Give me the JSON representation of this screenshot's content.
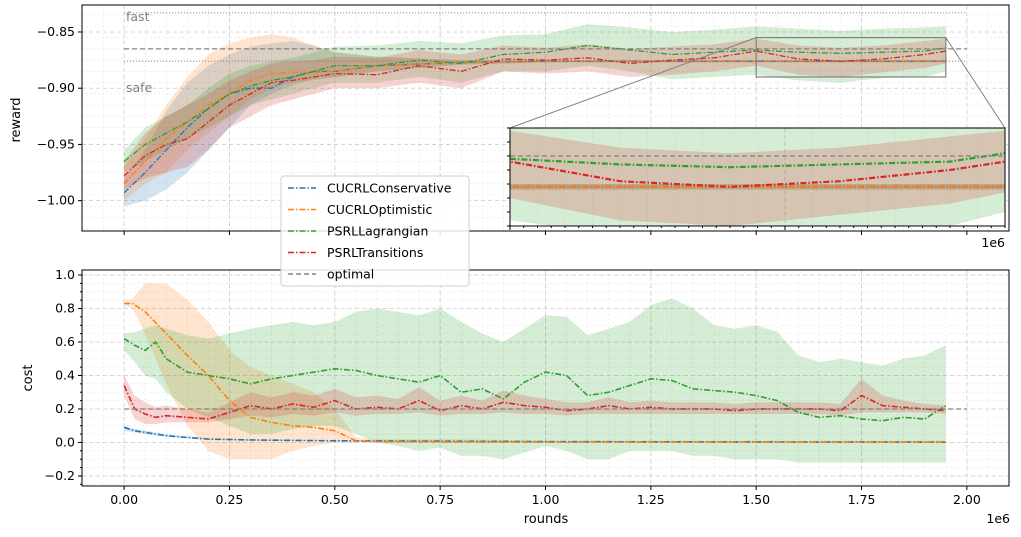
{
  "chart_data": [
    {
      "type": "line",
      "panel": "top",
      "ylabel": "reward",
      "xlabel": "",
      "xlim": [
        -100000,
        2100000
      ],
      "ylim": [
        -1.027,
        -0.826
      ],
      "yticks": [
        -1.0,
        -0.95,
        -0.9,
        -0.85
      ],
      "ytick_labels": [
        "−1.00",
        "−0.95",
        "−0.90",
        "−0.85"
      ],
      "offset_label": "1e6",
      "grid": true,
      "annotations": [
        {
          "text": "fast",
          "y": -0.833
        },
        {
          "text": "safe",
          "y": -0.876
        }
      ],
      "optimal_y": -0.865,
      "inset": {
        "xlim": [
          1500000,
          1950000
        ],
        "ylim": [
          -0.89,
          -0.855
        ],
        "offset_label": "1e6"
      },
      "series": [
        {
          "name": "CUCRLConservative",
          "color": "#1f77b4",
          "x": [
            0,
            50000,
            100000,
            150000,
            200000,
            250000,
            300000,
            350000,
            400000,
            450000,
            500000,
            600000,
            800000,
            1000000,
            1200000,
            1400000,
            1600000,
            1800000,
            1950000
          ],
          "values": [
            -0.993,
            -0.975,
            -0.955,
            -0.935,
            -0.918,
            -0.905,
            -0.9,
            -0.9,
            -0.89,
            -0.885,
            -0.885,
            -0.88,
            -0.877,
            -0.876,
            -0.876,
            -0.876,
            -0.876,
            -0.876,
            -0.876
          ],
          "band_low": [
            -1.005,
            -1.0,
            -0.99,
            -0.975,
            -0.955,
            -0.935,
            -0.915,
            -0.905,
            -0.897,
            -0.892,
            -0.89,
            -0.885,
            -0.879,
            -0.877,
            -0.877,
            -0.877,
            -0.877,
            -0.877,
            -0.877
          ],
          "band_high": [
            -0.98,
            -0.955,
            -0.92,
            -0.895,
            -0.88,
            -0.87,
            -0.863,
            -0.86,
            -0.858,
            -0.862,
            -0.868,
            -0.872,
            -0.875,
            -0.875,
            -0.875,
            -0.875,
            -0.875,
            -0.875,
            -0.875
          ]
        },
        {
          "name": "CUCRLOptimistic",
          "color": "#ff7f0e",
          "x": [
            0,
            50000,
            100000,
            150000,
            200000,
            250000,
            300000,
            350000,
            400000,
            450000,
            500000,
            600000,
            800000,
            1000000,
            1200000,
            1400000,
            1600000,
            1800000,
            1950000
          ],
          "values": [
            -0.985,
            -0.965,
            -0.945,
            -0.93,
            -0.915,
            -0.905,
            -0.893,
            -0.887,
            -0.886,
            -0.886,
            -0.885,
            -0.88,
            -0.877,
            -0.876,
            -0.876,
            -0.876,
            -0.876,
            -0.876,
            -0.876
          ],
          "band_low": [
            -1.0,
            -0.985,
            -0.975,
            -0.955,
            -0.94,
            -0.925,
            -0.91,
            -0.9,
            -0.895,
            -0.893,
            -0.89,
            -0.885,
            -0.879,
            -0.877,
            -0.877,
            -0.877,
            -0.877,
            -0.877,
            -0.877
          ],
          "band_high": [
            -0.97,
            -0.945,
            -0.915,
            -0.89,
            -0.87,
            -0.86,
            -0.855,
            -0.852,
            -0.855,
            -0.862,
            -0.868,
            -0.872,
            -0.875,
            -0.875,
            -0.875,
            -0.875,
            -0.875,
            -0.875,
            -0.875
          ]
        },
        {
          "name": "PSRLLagrangian",
          "color": "#2ca02c",
          "x": [
            0,
            50000,
            100000,
            150000,
            200000,
            250000,
            300000,
            350000,
            400000,
            450000,
            500000,
            600000,
            700000,
            800000,
            900000,
            1000000,
            1100000,
            1200000,
            1300000,
            1400000,
            1500000,
            1600000,
            1700000,
            1800000,
            1900000,
            1950000
          ],
          "values": [
            -0.965,
            -0.95,
            -0.94,
            -0.93,
            -0.918,
            -0.905,
            -0.898,
            -0.893,
            -0.89,
            -0.885,
            -0.88,
            -0.88,
            -0.875,
            -0.878,
            -0.87,
            -0.868,
            -0.862,
            -0.866,
            -0.87,
            -0.868,
            -0.866,
            -0.868,
            -0.869,
            -0.868,
            -0.867,
            -0.864
          ],
          "band_low": [
            -0.975,
            -0.965,
            -0.955,
            -0.945,
            -0.935,
            -0.925,
            -0.915,
            -0.91,
            -0.905,
            -0.9,
            -0.895,
            -0.895,
            -0.89,
            -0.895,
            -0.885,
            -0.885,
            -0.88,
            -0.885,
            -0.892,
            -0.89,
            -0.888,
            -0.893,
            -0.895,
            -0.891,
            -0.89,
            -0.885
          ],
          "band_high": [
            -0.955,
            -0.935,
            -0.925,
            -0.915,
            -0.9,
            -0.887,
            -0.88,
            -0.876,
            -0.873,
            -0.868,
            -0.863,
            -0.862,
            -0.858,
            -0.86,
            -0.853,
            -0.852,
            -0.843,
            -0.846,
            -0.85,
            -0.848,
            -0.845,
            -0.847,
            -0.849,
            -0.847,
            -0.846,
            -0.845
          ]
        },
        {
          "name": "PSRLTransitions",
          "color": "#d62728",
          "x": [
            0,
            50000,
            100000,
            150000,
            200000,
            250000,
            300000,
            350000,
            400000,
            450000,
            500000,
            600000,
            700000,
            800000,
            900000,
            1000000,
            1100000,
            1200000,
            1300000,
            1400000,
            1500000,
            1600000,
            1700000,
            1800000,
            1900000,
            1950000
          ],
          "values": [
            -0.978,
            -0.96,
            -0.95,
            -0.945,
            -0.93,
            -0.915,
            -0.905,
            -0.895,
            -0.893,
            -0.89,
            -0.887,
            -0.888,
            -0.88,
            -0.885,
            -0.874,
            -0.875,
            -0.873,
            -0.878,
            -0.875,
            -0.873,
            -0.867,
            -0.874,
            -0.876,
            -0.874,
            -0.87,
            -0.867
          ],
          "band_low": [
            -0.99,
            -0.98,
            -0.975,
            -0.97,
            -0.955,
            -0.935,
            -0.925,
            -0.915,
            -0.91,
            -0.905,
            -0.9,
            -0.9,
            -0.895,
            -0.9,
            -0.885,
            -0.887,
            -0.885,
            -0.89,
            -0.888,
            -0.885,
            -0.88,
            -0.888,
            -0.89,
            -0.886,
            -0.882,
            -0.878
          ],
          "band_high": [
            -0.965,
            -0.94,
            -0.925,
            -0.915,
            -0.905,
            -0.893,
            -0.885,
            -0.878,
            -0.876,
            -0.875,
            -0.872,
            -0.873,
            -0.866,
            -0.87,
            -0.862,
            -0.864,
            -0.861,
            -0.865,
            -0.863,
            -0.861,
            -0.856,
            -0.862,
            -0.864,
            -0.862,
            -0.858,
            -0.856
          ]
        }
      ]
    },
    {
      "type": "line",
      "panel": "bottom",
      "ylabel": "cost",
      "xlabel": "rounds",
      "xlim": [
        -100000,
        2100000
      ],
      "ylim": [
        -0.26,
        1.03
      ],
      "xticks": [
        0,
        250000,
        500000,
        750000,
        1000000,
        1250000,
        1500000,
        1750000,
        2000000
      ],
      "xtick_labels": [
        "0.00",
        "0.25",
        "0.50",
        "0.75",
        "1.00",
        "1.25",
        "1.50",
        "1.75",
        "2.00"
      ],
      "yticks": [
        -0.2,
        0.0,
        0.2,
        0.4,
        0.6,
        0.8,
        1.0
      ],
      "ytick_labels": [
        "−0.2",
        "0.0",
        "0.2",
        "0.4",
        "0.6",
        "0.8",
        "1.0"
      ],
      "offset_label": "1e6",
      "grid": true,
      "optimal_y": 0.2,
      "series": [
        {
          "name": "CUCRLConservative",
          "color": "#1f77b4",
          "x": [
            0,
            25000,
            50000,
            100000,
            150000,
            200000,
            300000,
            500000,
            1000000,
            1500000,
            1950000
          ],
          "values": [
            0.09,
            0.07,
            0.06,
            0.04,
            0.03,
            0.02,
            0.015,
            0.01,
            0.005,
            0.003,
            0.002
          ],
          "band_low": [
            0.07,
            0.06,
            0.05,
            0.035,
            0.025,
            0.018,
            0.012,
            0.008,
            0.004,
            0.002,
            0.001
          ],
          "band_high": [
            0.1,
            0.08,
            0.07,
            0.05,
            0.035,
            0.025,
            0.018,
            0.012,
            0.006,
            0.004,
            0.003
          ]
        },
        {
          "name": "CUCRLOptimistic",
          "color": "#ff7f0e",
          "x": [
            0,
            20000,
            50000,
            100000,
            150000,
            200000,
            250000,
            300000,
            350000,
            400000,
            450000,
            500000,
            550000,
            600000,
            800000,
            1000000,
            1500000,
            1950000
          ],
          "values": [
            0.83,
            0.83,
            0.78,
            0.65,
            0.52,
            0.4,
            0.25,
            0.15,
            0.12,
            0.1,
            0.09,
            0.07,
            0.01,
            0.005,
            0.003,
            0.002,
            0.002,
            0.002
          ],
          "band_low": [
            0.82,
            0.8,
            0.65,
            0.35,
            0.1,
            -0.05,
            -0.1,
            -0.1,
            -0.1,
            -0.05,
            -0.02,
            0.0,
            0.0,
            0.0,
            0.0,
            0.0,
            0.0,
            0.0
          ],
          "band_high": [
            0.84,
            0.86,
            0.95,
            0.95,
            0.85,
            0.72,
            0.55,
            0.45,
            0.4,
            0.35,
            0.3,
            0.2,
            0.03,
            0.02,
            0.02,
            0.01,
            0.01,
            0.01
          ]
        },
        {
          "name": "PSRLLagrangian",
          "color": "#2ca02c",
          "x": [
            0,
            25000,
            50000,
            75000,
            100000,
            150000,
            200000,
            250000,
            300000,
            350000,
            400000,
            450000,
            500000,
            550000,
            600000,
            650000,
            700000,
            750000,
            800000,
            850000,
            900000,
            950000,
            1000000,
            1050000,
            1100000,
            1150000,
            1200000,
            1250000,
            1300000,
            1350000,
            1400000,
            1450000,
            1500000,
            1550000,
            1600000,
            1650000,
            1700000,
            1750000,
            1800000,
            1850000,
            1900000,
            1950000
          ],
          "values": [
            0.62,
            0.58,
            0.55,
            0.6,
            0.5,
            0.42,
            0.4,
            0.38,
            0.35,
            0.38,
            0.4,
            0.42,
            0.44,
            0.43,
            0.4,
            0.38,
            0.36,
            0.4,
            0.3,
            0.32,
            0.26,
            0.36,
            0.42,
            0.4,
            0.28,
            0.3,
            0.34,
            0.38,
            0.37,
            0.32,
            0.31,
            0.3,
            0.28,
            0.25,
            0.18,
            0.15,
            0.16,
            0.14,
            0.13,
            0.15,
            0.14,
            0.22
          ],
          "band_low": [
            0.55,
            0.48,
            0.4,
            0.38,
            0.3,
            0.2,
            0.15,
            0.1,
            0.05,
            0.05,
            0.08,
            0.1,
            0.1,
            0.05,
            0.0,
            -0.02,
            -0.05,
            -0.03,
            -0.08,
            -0.08,
            -0.1,
            -0.06,
            -0.02,
            -0.05,
            -0.1,
            -0.1,
            -0.05,
            -0.05,
            -0.05,
            -0.08,
            -0.08,
            -0.1,
            -0.1,
            -0.1,
            -0.12,
            -0.12,
            -0.12,
            -0.12,
            -0.12,
            -0.12,
            -0.12,
            -0.12
          ],
          "band_high": [
            0.65,
            0.66,
            0.68,
            0.7,
            0.68,
            0.64,
            0.62,
            0.65,
            0.68,
            0.7,
            0.72,
            0.7,
            0.72,
            0.78,
            0.8,
            0.78,
            0.76,
            0.8,
            0.72,
            0.65,
            0.6,
            0.68,
            0.76,
            0.75,
            0.64,
            0.68,
            0.72,
            0.82,
            0.86,
            0.8,
            0.7,
            0.68,
            0.7,
            0.66,
            0.52,
            0.48,
            0.5,
            0.48,
            0.46,
            0.5,
            0.52,
            0.58
          ]
        },
        {
          "name": "PSRLTransitions",
          "color": "#d62728",
          "x": [
            0,
            25000,
            50000,
            75000,
            100000,
            150000,
            200000,
            250000,
            300000,
            350000,
            400000,
            450000,
            500000,
            550000,
            600000,
            650000,
            700000,
            750000,
            800000,
            850000,
            900000,
            950000,
            1000000,
            1050000,
            1100000,
            1150000,
            1200000,
            1250000,
            1300000,
            1350000,
            1400000,
            1450000,
            1500000,
            1550000,
            1600000,
            1650000,
            1700000,
            1750000,
            1800000,
            1850000,
            1900000,
            1950000
          ],
          "values": [
            0.34,
            0.2,
            0.17,
            0.15,
            0.16,
            0.15,
            0.14,
            0.18,
            0.22,
            0.2,
            0.23,
            0.21,
            0.25,
            0.2,
            0.21,
            0.2,
            0.25,
            0.19,
            0.22,
            0.2,
            0.24,
            0.22,
            0.21,
            0.19,
            0.2,
            0.22,
            0.2,
            0.21,
            0.2,
            0.2,
            0.2,
            0.19,
            0.2,
            0.2,
            0.2,
            0.2,
            0.19,
            0.28,
            0.22,
            0.21,
            0.2,
            0.19
          ],
          "band_low": [
            0.28,
            0.14,
            0.11,
            0.11,
            0.12,
            0.12,
            0.12,
            0.14,
            0.16,
            0.15,
            0.17,
            0.16,
            0.18,
            0.16,
            0.17,
            0.17,
            0.18,
            0.16,
            0.17,
            0.17,
            0.18,
            0.17,
            0.17,
            0.16,
            0.17,
            0.17,
            0.17,
            0.17,
            0.17,
            0.17,
            0.17,
            0.17,
            0.17,
            0.17,
            0.17,
            0.17,
            0.16,
            0.18,
            0.18,
            0.18,
            0.18,
            0.17
          ],
          "band_high": [
            0.4,
            0.28,
            0.24,
            0.21,
            0.22,
            0.2,
            0.18,
            0.24,
            0.3,
            0.27,
            0.3,
            0.28,
            0.32,
            0.27,
            0.28,
            0.26,
            0.33,
            0.25,
            0.28,
            0.25,
            0.31,
            0.28,
            0.26,
            0.24,
            0.24,
            0.27,
            0.24,
            0.25,
            0.24,
            0.24,
            0.24,
            0.23,
            0.24,
            0.24,
            0.24,
            0.24,
            0.23,
            0.38,
            0.28,
            0.25,
            0.23,
            0.22
          ]
        }
      ]
    }
  ],
  "legend": {
    "items": [
      {
        "label": "CUCRLConservative",
        "color": "#1f77b4",
        "dash": "dashdot"
      },
      {
        "label": "CUCRLOptimistic",
        "color": "#ff7f0e",
        "dash": "dashdot"
      },
      {
        "label": "PSRLLagrangian",
        "color": "#2ca02c",
        "dash": "dashdot"
      },
      {
        "label": "PSRLTransitions",
        "color": "#d62728",
        "dash": "dashdot"
      },
      {
        "label": "optimal",
        "color": "#808080",
        "dash": "dashed"
      }
    ]
  }
}
